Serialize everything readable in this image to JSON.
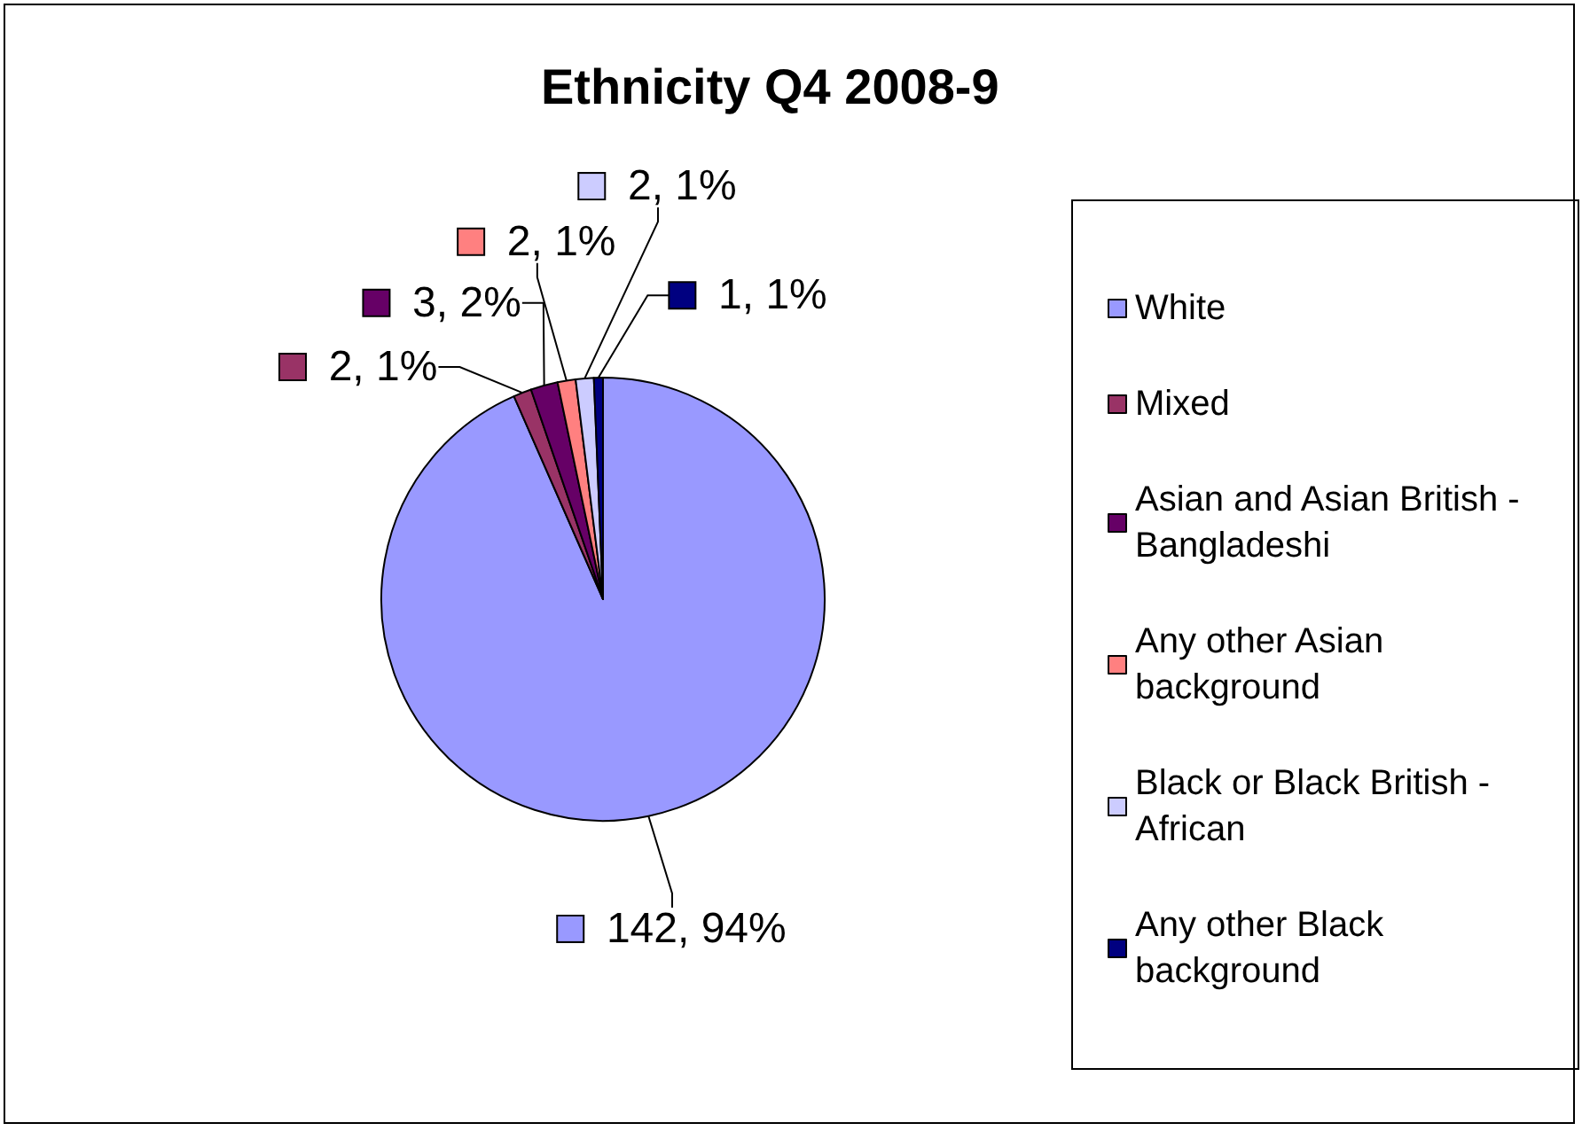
{
  "chart_data": {
    "type": "pie",
    "title": "Ethnicity Q4 2008-9",
    "categories": [
      "White",
      "Mixed",
      "Asian and Asian British - Bangladeshi",
      "Any other Asian background",
      "Black or Black British - African",
      "Any other Black background"
    ],
    "values": [
      142,
      2,
      3,
      2,
      2,
      1
    ],
    "colors": [
      "#9999ff",
      "#993366",
      "#660066",
      "#ff8080",
      "#ccccff",
      "#000080"
    ],
    "value_labels": [
      "142, 94%",
      "2, 1%",
      "3, 2%",
      "2, 1%",
      "2, 1%",
      "1, 1%"
    ],
    "legend": "right"
  }
}
